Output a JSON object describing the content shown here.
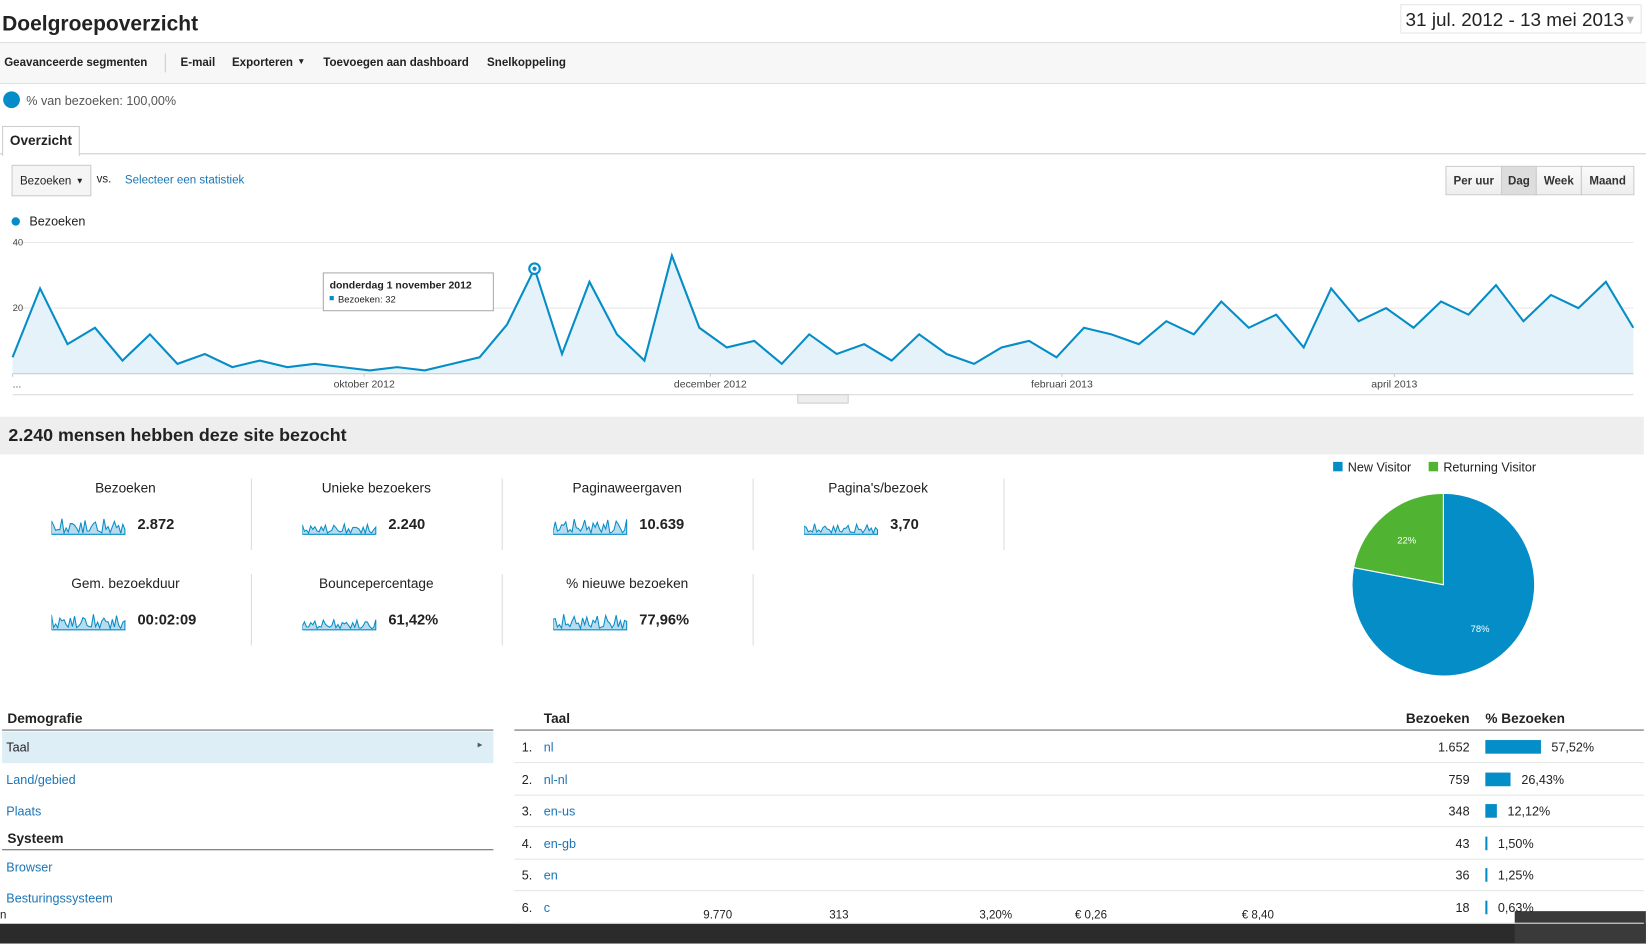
{
  "header": {
    "title": "Doelgroepoverzicht",
    "date_range": "31 jul. 2012 - 13 mei 2013"
  },
  "toolbar": [
    "Geavanceerde segmenten",
    "E-mail",
    "Exporteren",
    "Toevoegen aan dashboard",
    "Snelkoppeling"
  ],
  "segment": "% van bezoeken: 100,00%",
  "tab": "Overzicht",
  "controls": {
    "metric": "Bezoeken",
    "vs": "vs.",
    "select": "Selecteer een statistiek",
    "periods": [
      "Per uur",
      "Dag",
      "Week",
      "Maand"
    ]
  },
  "chart_data": [
    {
      "type": "line",
      "series": [
        {
          "name": "Bezoeken",
          "color": "#058dc7",
          "values": [
            5,
            26,
            9,
            14,
            4,
            12,
            3,
            6,
            2,
            4,
            2,
            3,
            2,
            1,
            2,
            1,
            3,
            5,
            15,
            32,
            6,
            28,
            12,
            4,
            36,
            14,
            8,
            10,
            3,
            12,
            6,
            9,
            4,
            12,
            6,
            3,
            8,
            10,
            5,
            14,
            12,
            9,
            16,
            12,
            22,
            14,
            18,
            8,
            26,
            16,
            20,
            14,
            22,
            18,
            27,
            16,
            24,
            20,
            28,
            14
          ]
        }
      ],
      "ylim": [
        0,
        40
      ],
      "yticks": [
        20,
        40
      ],
      "xticks": [
        {
          "value": 0,
          "label": "..."
        },
        {
          "value": 12.8,
          "label": "oktober 2012"
        },
        {
          "value": 25.4,
          "label": "december 2012"
        },
        {
          "value": 38.2,
          "label": "februari 2013"
        },
        {
          "value": 50.3,
          "label": "april 2013"
        }
      ],
      "tooltip": {
        "index": 19,
        "title": "donderdag 1 november 2012",
        "text": "Bezoeken: 32"
      }
    },
    {
      "type": "pie",
      "categories": [
        "New Visitor",
        "Returning Visitor"
      ],
      "values": [
        78,
        22
      ],
      "value_labels": [
        "78%",
        "22%"
      ],
      "colors": [
        "#058dc7",
        "#50b432"
      ]
    }
  ],
  "summary": {
    "title": "2.240 mensen hebben deze site bezocht",
    "metrics": [
      {
        "label": "Bezoeken",
        "value": "2.872"
      },
      {
        "label": "Unieke bezoekers",
        "value": "2.240"
      },
      {
        "label": "Paginaweergaven",
        "value": "10.639"
      },
      {
        "label": "Pagina's/bezoek",
        "value": "3,70"
      },
      {
        "label": "Gem. bezoekduur",
        "value": "00:02:09"
      },
      {
        "label": "Bouncepercentage",
        "value": "61,42%"
      },
      {
        "label": "% nieuwe bezoeken",
        "value": "77,96%"
      }
    ]
  },
  "nav": {
    "sections": [
      {
        "title": "Demografie",
        "items": [
          "Taal",
          "Land/gebied",
          "Plaats"
        ]
      },
      {
        "title": "Systeem",
        "items": [
          "Browser",
          "Besturingssysteem"
        ]
      }
    ]
  },
  "table": {
    "headers": [
      "Taal",
      "Bezoeken",
      "% Bezoeken"
    ],
    "rows": [
      {
        "rank": "1.",
        "name": "nl",
        "visits": "1.652",
        "share": 57.52,
        "share_label": "57,52%"
      },
      {
        "rank": "2.",
        "name": "nl-nl",
        "visits": "759",
        "share": 26.43,
        "share_label": "26,43%"
      },
      {
        "rank": "3.",
        "name": "en-us",
        "visits": "348",
        "share": 12.12,
        "share_label": "12,12%"
      },
      {
        "rank": "4.",
        "name": "en-gb",
        "visits": "43",
        "share": 1.5,
        "share_label": "1,50%"
      },
      {
        "rank": "5.",
        "name": "en",
        "visits": "36",
        "share": 1.25,
        "share_label": "1,25%"
      },
      {
        "rank": "6.",
        "name": "c",
        "visits": "18",
        "share": 0.63,
        "share_label": "0,63%"
      }
    ]
  },
  "footer_strip": [
    "n",
    "9.770",
    "313",
    "3,20%",
    "€ 0,26",
    "€ 8,40"
  ]
}
